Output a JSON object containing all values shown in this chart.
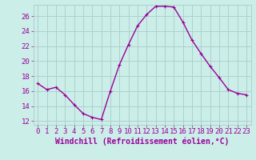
{
  "x": [
    0,
    1,
    2,
    3,
    4,
    5,
    6,
    7,
    8,
    9,
    10,
    11,
    12,
    13,
    14,
    15,
    16,
    17,
    18,
    19,
    20,
    21,
    22,
    23
  ],
  "y": [
    17.0,
    16.2,
    16.5,
    15.5,
    14.2,
    13.0,
    12.5,
    12.2,
    16.0,
    19.5,
    22.2,
    24.7,
    26.2,
    27.3,
    27.3,
    27.2,
    25.2,
    22.8,
    21.0,
    19.3,
    17.8,
    16.2,
    15.7,
    15.5
  ],
  "line_color": "#990099",
  "marker": "+",
  "marker_size": 3,
  "marker_linewidth": 0.8,
  "bg_color": "#cceee8",
  "grid_color": "#aacccc",
  "xlabel": "Windchill (Refroidissement éolien,°C)",
  "xlabel_color": "#990099",
  "tick_color": "#990099",
  "xlim": [
    -0.5,
    23.5
  ],
  "ylim": [
    11.5,
    27.5
  ],
  "yticks": [
    12,
    14,
    16,
    18,
    20,
    22,
    24,
    26
  ],
  "xtick_labels": [
    "0",
    "1",
    "2",
    "3",
    "4",
    "5",
    "6",
    "7",
    "8",
    "9",
    "10",
    "11",
    "12",
    "13",
    "14",
    "15",
    "16",
    "17",
    "18",
    "19",
    "20",
    "21",
    "22",
    "23"
  ],
  "font_size": 6.5,
  "xlabel_fontsize": 7,
  "line_width": 1.0
}
